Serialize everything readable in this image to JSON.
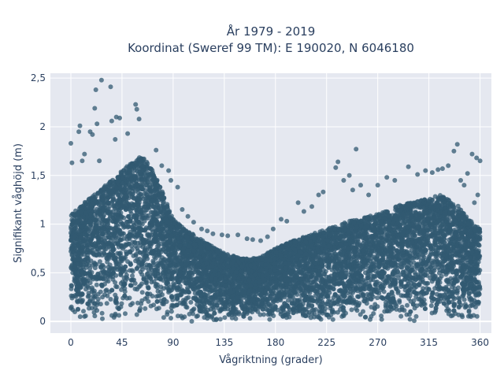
{
  "chart_data": {
    "type": "scatter",
    "title_line1": "År 1979 - 2019",
    "title_line2": "Koordinat (Sweref 99 TM): E 190020, N 6046180",
    "xlabel": "Vågriktning (grader)",
    "ylabel": "Signifikant våghöjd (m)",
    "xlim": [
      -18,
      370
    ],
    "ylim": [
      -0.12,
      2.55
    ],
    "x_ticks": [
      0,
      45,
      90,
      135,
      180,
      225,
      270,
      315,
      360
    ],
    "x_tick_labels": [
      "0",
      "45",
      "90",
      "135",
      "180",
      "225",
      "270",
      "315",
      "360"
    ],
    "y_ticks": [
      0,
      0.5,
      1,
      1.5,
      2,
      2.5
    ],
    "y_tick_labels": [
      "0",
      "0,5",
      "1",
      "1,5",
      "2",
      "2,5"
    ],
    "grid": true,
    "marker_color": "#325a72",
    "plot_bgcolor": "#e5e8f0",
    "envelope": {
      "x": [
        0,
        15,
        30,
        45,
        55,
        62,
        70,
        80,
        90,
        100,
        120,
        135,
        150,
        165,
        180,
        200,
        225,
        250,
        270,
        290,
        310,
        325,
        340,
        350,
        360
      ],
      "upper": [
        1.1,
        1.25,
        1.4,
        1.55,
        1.65,
        1.7,
        1.6,
        1.35,
        1.05,
        0.95,
        0.8,
        0.7,
        0.65,
        0.65,
        0.75,
        0.85,
        0.95,
        1.05,
        1.1,
        1.2,
        1.25,
        1.3,
        1.2,
        1.05,
        0.95
      ]
    },
    "outliers": [
      {
        "x": 27,
        "y": 2.48
      },
      {
        "x": 35,
        "y": 2.41
      },
      {
        "x": 22,
        "y": 2.38
      },
      {
        "x": 21,
        "y": 2.19
      },
      {
        "x": 57,
        "y": 2.23
      },
      {
        "x": 58,
        "y": 2.18
      },
      {
        "x": 60,
        "y": 2.08
      },
      {
        "x": 40,
        "y": 2.1
      },
      {
        "x": 43,
        "y": 2.09
      },
      {
        "x": 36,
        "y": 2.06
      },
      {
        "x": 8,
        "y": 2.01
      },
      {
        "x": 7,
        "y": 1.95
      },
      {
        "x": 17,
        "y": 1.95
      },
      {
        "x": 23,
        "y": 2.03
      },
      {
        "x": 19,
        "y": 1.92
      },
      {
        "x": 50,
        "y": 1.93
      },
      {
        "x": 39,
        "y": 1.87
      },
      {
        "x": 0,
        "y": 1.83
      },
      {
        "x": 12,
        "y": 1.72
      },
      {
        "x": 25,
        "y": 1.65
      },
      {
        "x": 10,
        "y": 1.65
      },
      {
        "x": 1,
        "y": 1.63
      },
      {
        "x": 75,
        "y": 1.76
      },
      {
        "x": 80,
        "y": 1.6
      },
      {
        "x": 86,
        "y": 1.55
      },
      {
        "x": 88,
        "y": 1.45
      },
      {
        "x": 94,
        "y": 1.38
      },
      {
        "x": 98,
        "y": 1.15
      },
      {
        "x": 103,
        "y": 1.08
      },
      {
        "x": 108,
        "y": 1.02
      },
      {
        "x": 115,
        "y": 0.95
      },
      {
        "x": 120,
        "y": 0.93
      },
      {
        "x": 125,
        "y": 0.9
      },
      {
        "x": 133,
        "y": 0.89
      },
      {
        "x": 138,
        "y": 0.88
      },
      {
        "x": 147,
        "y": 0.89
      },
      {
        "x": 155,
        "y": 0.85
      },
      {
        "x": 160,
        "y": 0.84
      },
      {
        "x": 167,
        "y": 0.83
      },
      {
        "x": 173,
        "y": 0.87
      },
      {
        "x": 178,
        "y": 0.95
      },
      {
        "x": 185,
        "y": 1.05
      },
      {
        "x": 190,
        "y": 1.03
      },
      {
        "x": 200,
        "y": 1.22
      },
      {
        "x": 205,
        "y": 1.13
      },
      {
        "x": 212,
        "y": 1.18
      },
      {
        "x": 218,
        "y": 1.3
      },
      {
        "x": 222,
        "y": 1.33
      },
      {
        "x": 235,
        "y": 1.64
      },
      {
        "x": 233,
        "y": 1.58
      },
      {
        "x": 240,
        "y": 1.45
      },
      {
        "x": 245,
        "y": 1.5
      },
      {
        "x": 251,
        "y": 1.77
      },
      {
        "x": 248,
        "y": 1.35
      },
      {
        "x": 255,
        "y": 1.4
      },
      {
        "x": 262,
        "y": 1.3
      },
      {
        "x": 270,
        "y": 1.4
      },
      {
        "x": 278,
        "y": 1.48
      },
      {
        "x": 285,
        "y": 1.45
      },
      {
        "x": 297,
        "y": 1.59
      },
      {
        "x": 305,
        "y": 1.51
      },
      {
        "x": 312,
        "y": 1.55
      },
      {
        "x": 318,
        "y": 1.53
      },
      {
        "x": 323,
        "y": 1.56
      },
      {
        "x": 327,
        "y": 1.57
      },
      {
        "x": 332,
        "y": 1.6
      },
      {
        "x": 337,
        "y": 1.75
      },
      {
        "x": 340,
        "y": 1.82
      },
      {
        "x": 349,
        "y": 1.52
      },
      {
        "x": 353,
        "y": 1.72
      },
      {
        "x": 357,
        "y": 1.68
      },
      {
        "x": 360,
        "y": 1.65
      },
      {
        "x": 346,
        "y": 1.4
      },
      {
        "x": 343,
        "y": 1.45
      },
      {
        "x": 358,
        "y": 1.3
      },
      {
        "x": 355,
        "y": 1.22
      }
    ],
    "n_points": 9000
  }
}
